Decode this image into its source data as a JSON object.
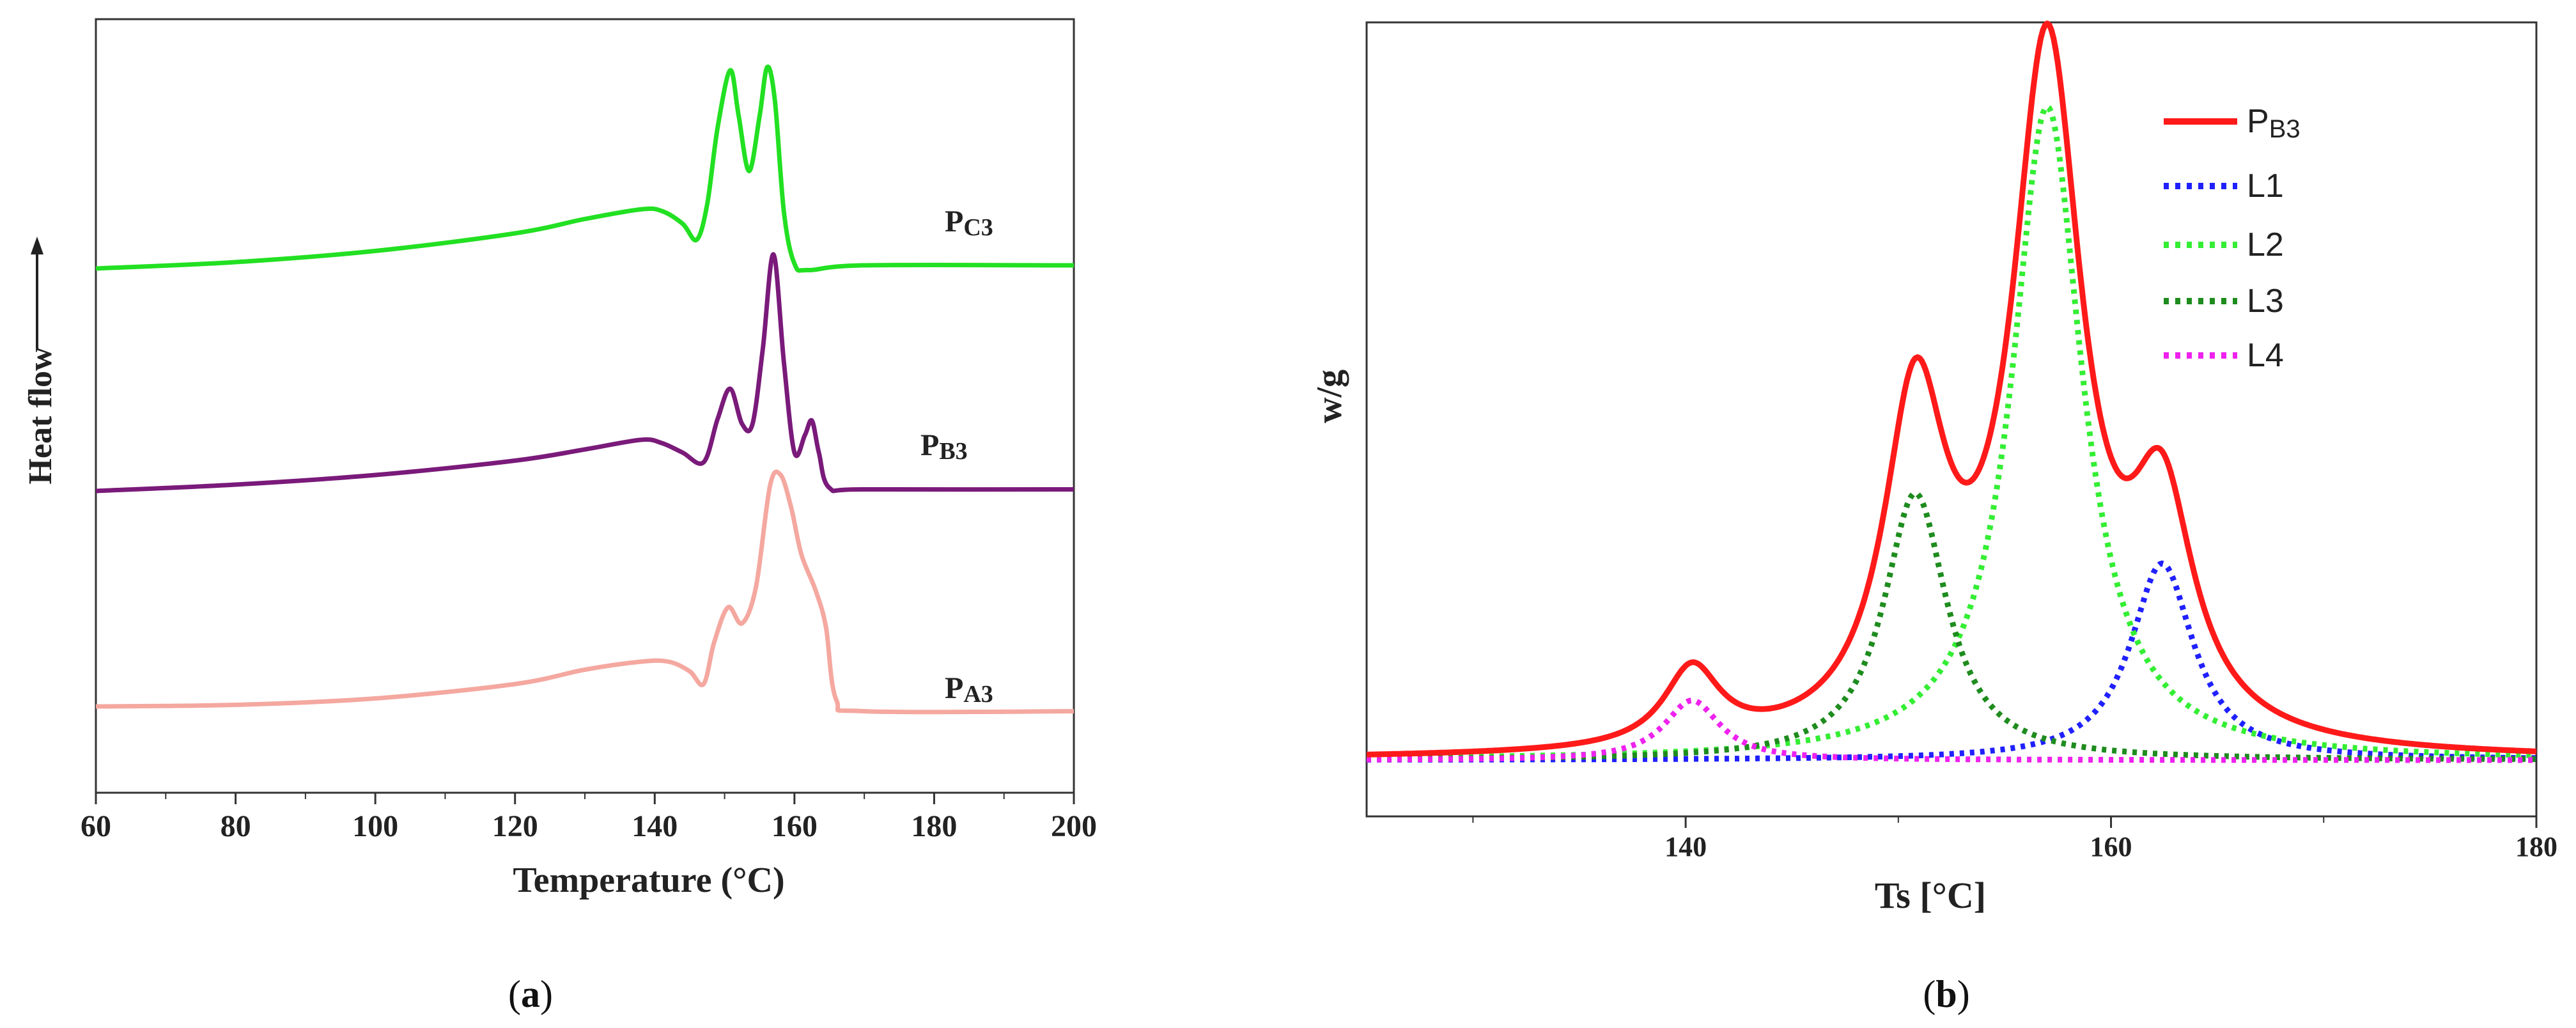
{
  "chart_data": [
    {
      "panel": "(a)",
      "panel_letter": "a",
      "type": "line",
      "title": "",
      "xlabel": "Temperature (°C)",
      "ylabel": "Heat flow",
      "xlim": [
        60,
        200
      ],
      "xticks": [
        "60",
        "80",
        "100",
        "120",
        "140",
        "160",
        "180",
        "200"
      ],
      "xtick_values": [
        60,
        80,
        100,
        120,
        140,
        160,
        180,
        200
      ],
      "y_units": "arbitrary (offset traces)",
      "colors": {
        "PC3": "#22e022",
        "PB3": "#7a1a7a",
        "PA3": "#f4a8a0"
      },
      "series": [
        {
          "name": "PC3",
          "label_main": "P",
          "label_sub": "C3",
          "color": "#22e022",
          "baseline": 0,
          "x": [
            60,
            80,
            100,
            120,
            130,
            138,
            141,
            144,
            146,
            147.5,
            149,
            150.8,
            152,
            153.5,
            155,
            156.1,
            157.2,
            158.5,
            160,
            162,
            170,
            200
          ],
          "values": [
            0.0,
            0.4,
            1.1,
            2.2,
            3.1,
            3.7,
            3.6,
            2.8,
            1.8,
            4.0,
            8.8,
            12.4,
            9.6,
            6.1,
            9.5,
            12.6,
            10.5,
            3.5,
            0.3,
            -0.1,
            0.2,
            0.2
          ]
        },
        {
          "name": "PB3",
          "label_main": "P",
          "label_sub": "B3",
          "color": "#7a1a7a",
          "baseline": 0,
          "x": [
            60,
            80,
            100,
            120,
            130,
            138,
            141,
            144,
            147,
            149,
            150.8,
            152.5,
            154,
            155.5,
            157,
            158.5,
            160,
            161.5,
            162.5,
            163.5,
            165,
            170,
            200
          ],
          "values": [
            0.0,
            0.4,
            1.0,
            1.9,
            2.6,
            3.2,
            3.0,
            2.4,
            1.8,
            4.5,
            6.4,
            4.2,
            4.2,
            9.0,
            14.8,
            8.0,
            2.4,
            3.5,
            4.4,
            2.4,
            0.2,
            0.1,
            0.1
          ]
        },
        {
          "name": "PA3",
          "label_main": "P",
          "label_sub": "A3",
          "color": "#f4a8a0",
          "baseline": 0,
          "x": [
            60,
            80,
            100,
            120,
            130,
            138,
            142,
            145,
            147,
            148.5,
            150.5,
            152.5,
            154.5,
            156.5,
            158,
            159.5,
            161,
            163,
            164.5,
            166,
            170,
            200
          ],
          "values": [
            0.0,
            0.1,
            0.5,
            1.4,
            2.3,
            2.8,
            2.8,
            2.2,
            1.4,
            4.0,
            6.2,
            5.2,
            7.5,
            13.8,
            14.5,
            12.5,
            9.5,
            7.3,
            5.0,
            0.4,
            -0.3,
            -0.3
          ]
        }
      ]
    },
    {
      "panel": "(b)",
      "panel_letter": "b",
      "type": "line",
      "title": "",
      "xlabel": "Ts [°C]",
      "ylabel": "w/g",
      "xlim": [
        125,
        180
      ],
      "ylim": [
        -0.8,
        10.5
      ],
      "xticks": [
        "140",
        "160",
        "180"
      ],
      "xtick_values": [
        140,
        160,
        180
      ],
      "legend_position": "top-right",
      "series": [
        {
          "name": "PB3",
          "label_main": "P",
          "label_sub": "B3",
          "color": "#ff1a1a",
          "style": "solid",
          "peaks": [
            [
              140.3,
              1.1,
              1.6
            ],
            [
              150.8,
              4.7,
              1.8
            ],
            [
              157.0,
              9.8,
              2.0
            ],
            [
              162.4,
              3.1,
              1.8
            ]
          ]
        },
        {
          "name": "L1",
          "label_main": "L1",
          "label_sub": "",
          "color": "#2020ff",
          "style": "dotted",
          "peaks": [
            [
              162.4,
              2.8,
              1.8
            ]
          ]
        },
        {
          "name": "L2",
          "label_main": "L2",
          "label_sub": "",
          "color": "#33ee33",
          "style": "dotted",
          "peaks": [
            [
              157.0,
              9.3,
              2.0
            ]
          ]
        },
        {
          "name": "L3",
          "label_main": "L3",
          "label_sub": "",
          "color": "#1e8c1e",
          "style": "dotted",
          "peaks": [
            [
              150.8,
              3.8,
              1.8
            ]
          ]
        },
        {
          "name": "L4",
          "label_main": "L4",
          "label_sub": "",
          "color": "#ee22ee",
          "style": "dotted",
          "peaks": [
            [
              140.3,
              0.85,
              1.6
            ]
          ]
        }
      ]
    }
  ]
}
